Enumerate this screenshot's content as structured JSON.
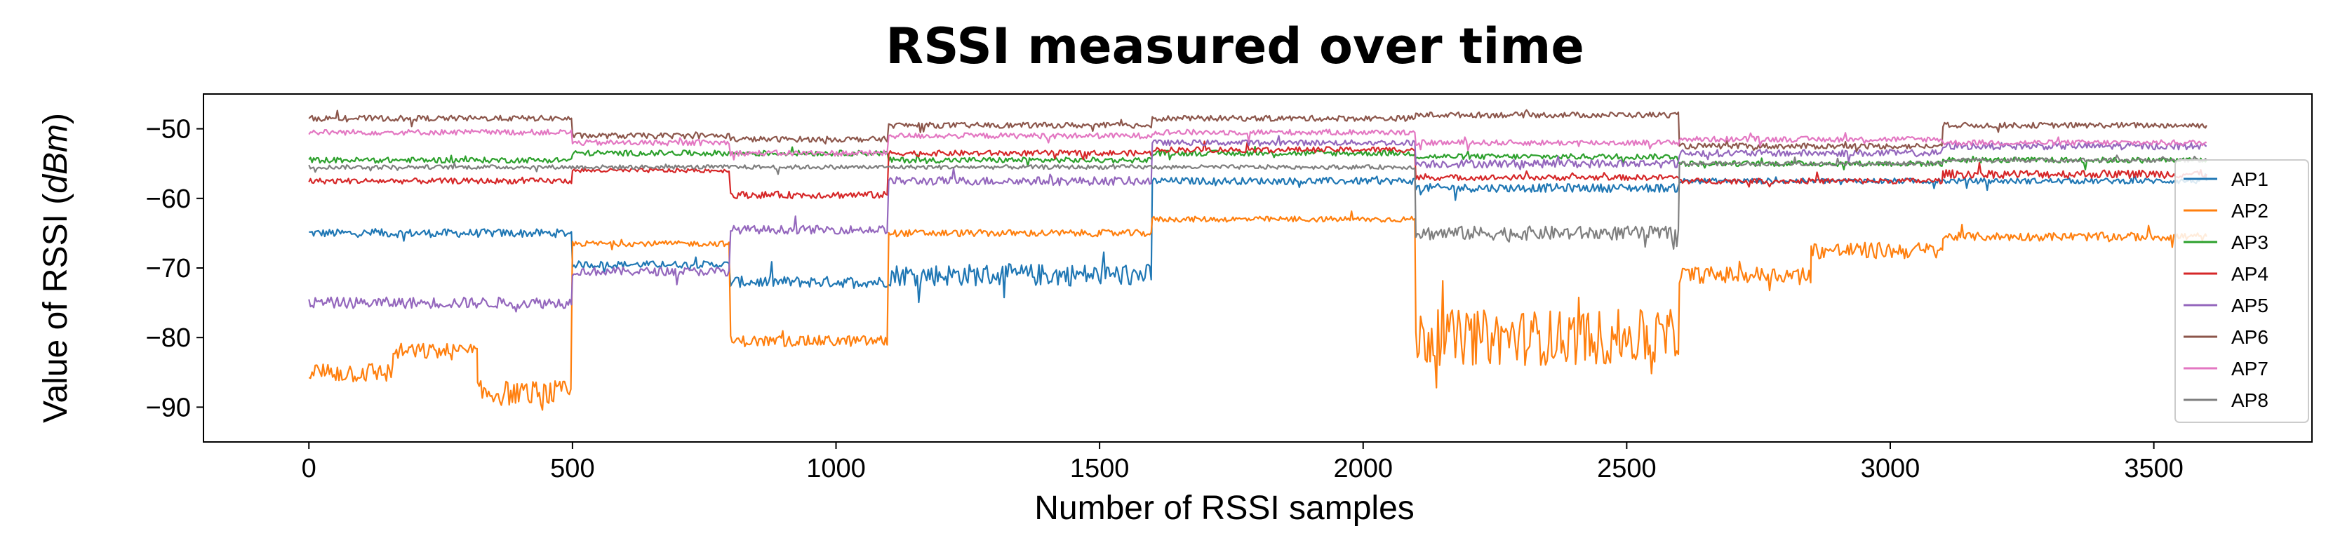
{
  "chart_data": {
    "type": "line",
    "title": "RSSI measured over time",
    "xlabel": "Number of RSSI samples",
    "ylabel_prefix": "Value of RSSI (",
    "ylabel_unit": "dBm",
    "ylabel_suffix": ")",
    "xlim": [
      -200,
      3800
    ],
    "ylim": [
      -95,
      -45
    ],
    "xticks": [
      0,
      500,
      1000,
      1500,
      2000,
      2500,
      3000,
      3500
    ],
    "yticks": [
      -50,
      -60,
      -70,
      -80,
      -90
    ],
    "ytick_labels": [
      "−50",
      "−60",
      "−70",
      "−80",
      "−90"
    ],
    "legend_position": "right",
    "series": [
      {
        "name": "AP1",
        "color": "#1f77b4",
        "segments": [
          [
            0,
            500,
            -65,
            0.6
          ],
          [
            500,
            800,
            -69.5,
            0.5
          ],
          [
            800,
            1100,
            -72,
            0.8
          ],
          [
            1100,
            1600,
            -71,
            1.6
          ],
          [
            1600,
            2100,
            -57.5,
            0.5
          ],
          [
            2100,
            2600,
            -58.5,
            0.6
          ],
          [
            2600,
            3100,
            -57.5,
            0.4
          ],
          [
            3100,
            3600,
            -57.5,
            0.4
          ]
        ]
      },
      {
        "name": "AP2",
        "color": "#ff7f0e",
        "segments": [
          [
            0,
            160,
            -85,
            1.5
          ],
          [
            160,
            320,
            -82,
            1.2
          ],
          [
            320,
            500,
            -88,
            1.8
          ],
          [
            500,
            800,
            -66.5,
            0.4
          ],
          [
            800,
            1100,
            -80.5,
            0.8
          ],
          [
            1100,
            1600,
            -65,
            0.5
          ],
          [
            1600,
            2100,
            -63,
            0.4
          ],
          [
            2100,
            2600,
            -80,
            4
          ],
          [
            2600,
            2850,
            -71,
            1.2
          ],
          [
            2850,
            3100,
            -67.5,
            1.2
          ],
          [
            3100,
            3600,
            -65.5,
            0.6
          ]
        ]
      },
      {
        "name": "AP3",
        "color": "#2ca02c",
        "segments": [
          [
            0,
            500,
            -54.5,
            0.4
          ],
          [
            500,
            800,
            -53.5,
            0.4
          ],
          [
            800,
            1100,
            -53.5,
            0.4
          ],
          [
            1100,
            1600,
            -54.5,
            0.4
          ],
          [
            1600,
            2100,
            -53.5,
            0.4
          ],
          [
            2100,
            2600,
            -54,
            0.4
          ],
          [
            2600,
            3100,
            -55,
            0.4
          ],
          [
            3100,
            3600,
            -54.5,
            0.4
          ]
        ]
      },
      {
        "name": "AP4",
        "color": "#d62728",
        "segments": [
          [
            0,
            500,
            -57.5,
            0.4
          ],
          [
            500,
            800,
            -56,
            0.3
          ],
          [
            800,
            1100,
            -59.5,
            0.5
          ],
          [
            1100,
            1600,
            -53.5,
            0.4
          ],
          [
            1600,
            2100,
            -53,
            0.4
          ],
          [
            2100,
            2600,
            -57,
            0.4
          ],
          [
            2600,
            3100,
            -57.5,
            0.4
          ],
          [
            3100,
            3600,
            -56.5,
            0.6
          ]
        ]
      },
      {
        "name": "AP5",
        "color": "#9467bd",
        "segments": [
          [
            0,
            500,
            -75,
            0.8
          ],
          [
            500,
            800,
            -70.5,
            0.6
          ],
          [
            800,
            1100,
            -64.5,
            0.6
          ],
          [
            1100,
            1600,
            -57.5,
            0.6
          ],
          [
            1600,
            2100,
            -52,
            0.4
          ],
          [
            2100,
            2600,
            -55,
            0.6
          ],
          [
            2600,
            3100,
            -53.5,
            0.5
          ],
          [
            3100,
            3600,
            -52.5,
            0.5
          ]
        ]
      },
      {
        "name": "AP6",
        "color": "#8c564b",
        "segments": [
          [
            0,
            500,
            -48.5,
            0.4
          ],
          [
            500,
            800,
            -51,
            0.4
          ],
          [
            800,
            1100,
            -51.5,
            0.4
          ],
          [
            1100,
            1600,
            -49.5,
            0.4
          ],
          [
            1600,
            2100,
            -48.5,
            0.4
          ],
          [
            2100,
            2600,
            -48,
            0.4
          ],
          [
            2600,
            3100,
            -52.5,
            0.4
          ],
          [
            3100,
            3600,
            -49.5,
            0.4
          ]
        ]
      },
      {
        "name": "AP7",
        "color": "#e377c2",
        "segments": [
          [
            0,
            500,
            -50.5,
            0.4
          ],
          [
            500,
            800,
            -52,
            0.4
          ],
          [
            800,
            1100,
            -53.5,
            0.4
          ],
          [
            1100,
            1600,
            -51,
            0.4
          ],
          [
            1600,
            2100,
            -50.5,
            0.4
          ],
          [
            2100,
            2600,
            -52,
            0.4
          ],
          [
            2600,
            3100,
            -51.5,
            0.4
          ],
          [
            3100,
            3600,
            -52,
            0.4
          ]
        ]
      },
      {
        "name": "AP8",
        "color": "#7f7f7f",
        "segments": [
          [
            0,
            500,
            -55.5,
            0.3
          ],
          [
            500,
            800,
            -55.5,
            0.3
          ],
          [
            800,
            1100,
            -55.5,
            0.3
          ],
          [
            1100,
            1600,
            -55.5,
            0.3
          ],
          [
            1600,
            2100,
            -55.5,
            0.3
          ],
          [
            2100,
            2600,
            -65,
            1.0
          ],
          [
            2600,
            3100,
            -55,
            0.3
          ],
          [
            3100,
            3600,
            -54.5,
            0.3
          ]
        ]
      }
    ]
  }
}
